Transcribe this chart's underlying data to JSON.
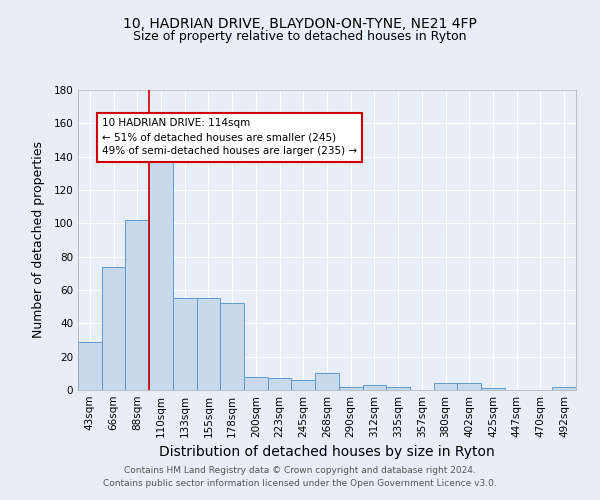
{
  "title1": "10, HADRIAN DRIVE, BLAYDON-ON-TYNE, NE21 4FP",
  "title2": "Size of property relative to detached houses in Ryton",
  "xlabel": "Distribution of detached houses by size in Ryton",
  "ylabel": "Number of detached properties",
  "categories": [
    "43sqm",
    "66sqm",
    "88sqm",
    "110sqm",
    "133sqm",
    "155sqm",
    "178sqm",
    "200sqm",
    "223sqm",
    "245sqm",
    "268sqm",
    "290sqm",
    "312sqm",
    "335sqm",
    "357sqm",
    "380sqm",
    "402sqm",
    "425sqm",
    "447sqm",
    "470sqm",
    "492sqm"
  ],
  "values": [
    29,
    74,
    102,
    137,
    55,
    55,
    52,
    8,
    7,
    6,
    10,
    2,
    3,
    2,
    0,
    4,
    4,
    1,
    0,
    0,
    2
  ],
  "bar_color": "#c9d9ed",
  "bar_edge_color": "#5b9bd5",
  "red_line_index": 3,
  "annotation_line1": "10 HADRIAN DRIVE: 114sqm",
  "annotation_line2": "← 51% of detached houses are smaller (245)",
  "annotation_line3": "49% of semi-detached houses are larger (235) →",
  "annotation_box_color": "#ffffff",
  "annotation_box_edge": "#cc0000",
  "ylim": [
    0,
    180
  ],
  "yticks": [
    0,
    20,
    40,
    60,
    80,
    100,
    120,
    140,
    160,
    180
  ],
  "background_color": "#e8eef7",
  "grid_color": "#ffffff",
  "footer_line1": "Contains HM Land Registry data © Crown copyright and database right 2024.",
  "footer_line2": "Contains public sector information licensed under the Open Government Licence v3.0.",
  "title1_fontsize": 10,
  "title2_fontsize": 9,
  "xlabel_fontsize": 10,
  "ylabel_fontsize": 9,
  "tick_fontsize": 7.5,
  "annotation_fontsize": 7.5,
  "footer_fontsize": 6.5
}
